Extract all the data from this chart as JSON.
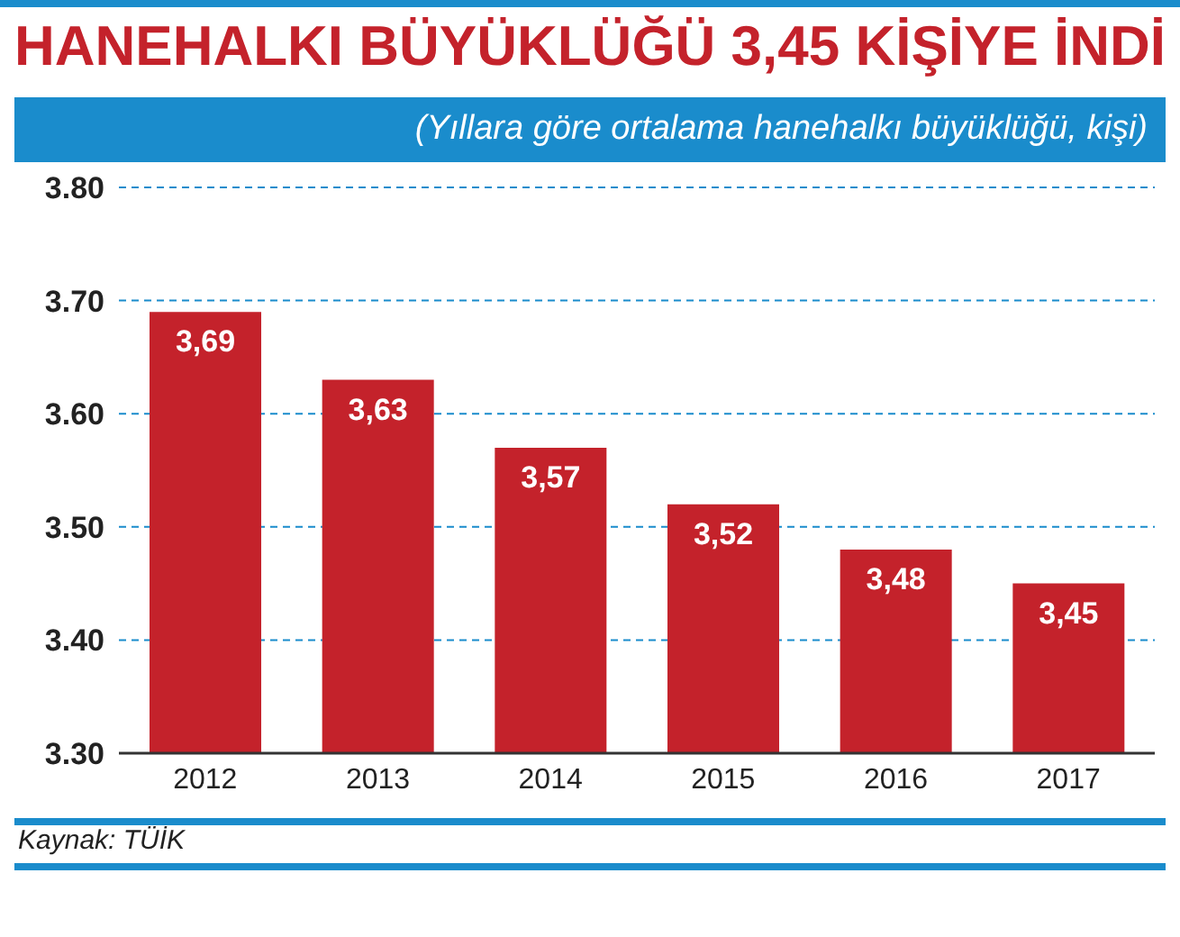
{
  "chart_data": {
    "type": "bar",
    "title": "HANEHALKI BÜYÜKLÜĞÜ 3,45 KİŞİYE İNDİ",
    "subtitle": "(Yıllara göre ortalama hanehalkı büyüklüğü, kişi)",
    "categories": [
      "2012",
      "2013",
      "2014",
      "2015",
      "2016",
      "2017"
    ],
    "values": [
      3.69,
      3.63,
      3.57,
      3.52,
      3.48,
      3.45
    ],
    "value_labels": [
      "3,69",
      "3,63",
      "3,57",
      "3,52",
      "3,48",
      "3,45"
    ],
    "color": "#c4222b",
    "ylim": [
      3.3,
      3.8
    ],
    "yticks": [
      {
        "value": 3.3,
        "label": "3.30"
      },
      {
        "value": 3.4,
        "label": "3.40"
      },
      {
        "value": 3.5,
        "label": "3.50"
      },
      {
        "value": 3.6,
        "label": "3.60"
      },
      {
        "value": 3.7,
        "label": "3.70"
      },
      {
        "value": 3.8,
        "label": "3.80"
      }
    ],
    "grid": "y",
    "annotations": [
      "Kaynak: TÜİK"
    ]
  }
}
